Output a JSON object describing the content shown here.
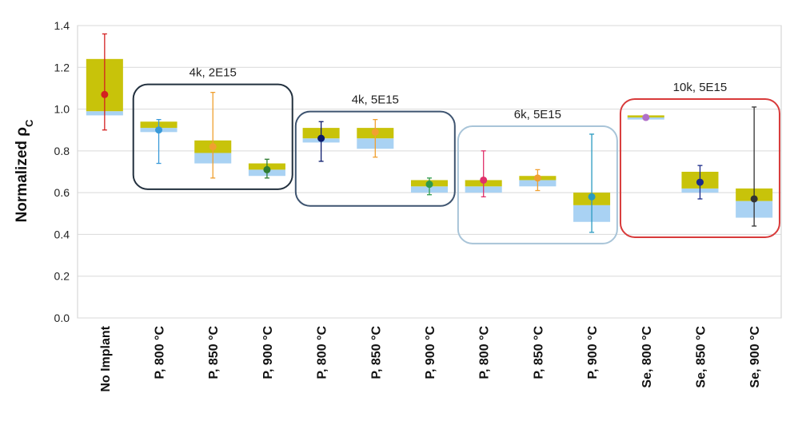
{
  "chart_data": {
    "type": "box",
    "ylabel": "Normalized ρ",
    "ylabel_sub": "C",
    "ylim": [
      0,
      1.4
    ],
    "yticks": [
      "0.0",
      "0.2",
      "0.4",
      "0.6",
      "0.8",
      "1.0",
      "1.2",
      "1.4"
    ],
    "grid": "horizontal",
    "categories": [
      "No Implant",
      "P, 800 °C",
      "P, 850 °C",
      "P, 900 °C",
      "P, 800 °C",
      "P, 850 °C",
      "P, 900 °C",
      "P, 800 °C",
      "P, 850 °C",
      "P, 900 °C",
      "Se, 800 °C",
      "Se, 850 °C",
      "Se, 900 °C"
    ],
    "points": [
      {
        "q1": 0.97,
        "median": 0.99,
        "q3": 1.24,
        "mean": 1.07,
        "whisker_low": 0.9,
        "whisker_high": 1.36,
        "color": "#d42020"
      },
      {
        "q1": 0.89,
        "median": 0.91,
        "q3": 0.94,
        "mean": 0.9,
        "whisker_low": 0.74,
        "whisker_high": 0.95,
        "color": "#3a9ad9"
      },
      {
        "q1": 0.74,
        "median": 0.79,
        "q3": 0.85,
        "mean": 0.82,
        "whisker_low": 0.67,
        "whisker_high": 1.08,
        "color": "#f0a030"
      },
      {
        "q1": 0.68,
        "median": 0.71,
        "q3": 0.74,
        "mean": 0.71,
        "whisker_low": 0.67,
        "whisker_high": 0.76,
        "color": "#2f7d32"
      },
      {
        "q1": 0.84,
        "median": 0.86,
        "q3": 0.91,
        "mean": 0.86,
        "whisker_low": 0.75,
        "whisker_high": 0.94,
        "color": "#0a1a6b"
      },
      {
        "q1": 0.81,
        "median": 0.86,
        "q3": 0.91,
        "mean": 0.89,
        "whisker_low": 0.77,
        "whisker_high": 0.95,
        "color": "#f0a030"
      },
      {
        "q1": 0.6,
        "median": 0.63,
        "q3": 0.66,
        "mean": 0.64,
        "whisker_low": 0.59,
        "whisker_high": 0.67,
        "color": "#2f9a4a"
      },
      {
        "q1": 0.6,
        "median": 0.63,
        "q3": 0.66,
        "mean": 0.66,
        "whisker_low": 0.58,
        "whisker_high": 0.8,
        "color": "#e0306a"
      },
      {
        "q1": 0.63,
        "median": 0.66,
        "q3": 0.68,
        "mean": 0.67,
        "whisker_low": 0.61,
        "whisker_high": 0.71,
        "color": "#f0a030"
      },
      {
        "q1": 0.46,
        "median": 0.54,
        "q3": 0.6,
        "mean": 0.58,
        "whisker_low": 0.41,
        "whisker_high": 0.88,
        "color": "#2a9ac0"
      },
      {
        "q1": 0.95,
        "median": 0.96,
        "q3": 0.97,
        "mean": 0.96,
        "whisker_low": 0.95,
        "whisker_high": 0.97,
        "color": "#b070c8"
      },
      {
        "q1": 0.6,
        "median": 0.62,
        "q3": 0.7,
        "mean": 0.65,
        "whisker_low": 0.57,
        "whisker_high": 0.73,
        "color": "#1a2a8a"
      },
      {
        "q1": 0.48,
        "median": 0.56,
        "q3": 0.62,
        "mean": 0.57,
        "whisker_low": 0.44,
        "whisker_high": 1.01,
        "color": "#333333"
      }
    ],
    "box_colors": {
      "lower": "#a9d2f3",
      "upper": "#c8c30a"
    },
    "groups": [
      {
        "label": "4k, 2E15",
        "from": 1,
        "to": 3,
        "border": "#22303e"
      },
      {
        "label": "4k, 5E15",
        "from": 4,
        "to": 6,
        "border": "#3e5470"
      },
      {
        "label": "6k, 5E15",
        "from": 7,
        "to": 9,
        "border": "#a8c4d8"
      },
      {
        "label": "10k, 5E15",
        "from": 10,
        "to": 12,
        "border": "#d83a3a"
      }
    ]
  }
}
